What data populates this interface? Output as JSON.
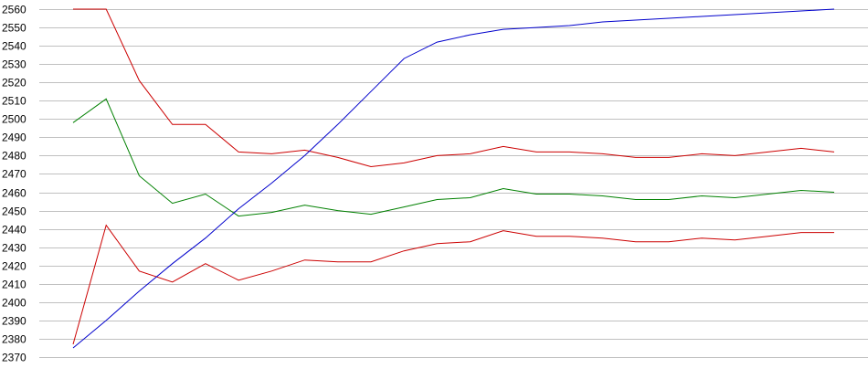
{
  "chart_data": {
    "type": "line",
    "title": "",
    "xlabel": "",
    "ylabel": "",
    "ylim": [
      2370,
      2560
    ],
    "yticks": [
      2370,
      2380,
      2390,
      2400,
      2410,
      2420,
      2430,
      2440,
      2450,
      2460,
      2470,
      2480,
      2490,
      2500,
      2510,
      2520,
      2530,
      2540,
      2550,
      2560
    ],
    "grid": true,
    "x": [
      1,
      2,
      3,
      4,
      5,
      6,
      7,
      8,
      9,
      10,
      11,
      12,
      13,
      14,
      15,
      16,
      17,
      18,
      19,
      20,
      21,
      22,
      23,
      24
    ],
    "series": [
      {
        "name": "upper-red",
        "color": "#cc0000",
        "values": [
          2560,
          2560,
          2521,
          2497,
          2497,
          2482,
          2481,
          2483,
          2479,
          2474,
          2476,
          2480,
          2481,
          2485,
          2482,
          2482,
          2481,
          2479,
          2479,
          2481,
          2480,
          2482,
          2484,
          2482
        ]
      },
      {
        "name": "green",
        "color": "#008000",
        "values": [
          2498,
          2511,
          2469,
          2454,
          2459,
          2447,
          2449,
          2453,
          2450,
          2448,
          2452,
          2456,
          2457,
          2462,
          2459,
          2459,
          2458,
          2456,
          2456,
          2458,
          2457,
          2459,
          2461,
          2460
        ]
      },
      {
        "name": "lower-red",
        "color": "#cc0000",
        "values": [
          2377,
          2442,
          2417,
          2411,
          2421,
          2412,
          2417,
          2423,
          2422,
          2422,
          2428,
          2432,
          2433,
          2439,
          2436,
          2436,
          2435,
          2433,
          2433,
          2435,
          2434,
          2436,
          2438,
          2438
        ]
      },
      {
        "name": "blue",
        "color": "#0000cc",
        "values": [
          2375,
          2390,
          2406,
          2421,
          2435,
          2451,
          2465,
          2480,
          2497,
          2515,
          2533,
          2542,
          2546,
          2549,
          2550,
          2551,
          2553,
          2554,
          2555,
          2556,
          2557,
          2558,
          2559,
          2560
        ]
      }
    ]
  }
}
